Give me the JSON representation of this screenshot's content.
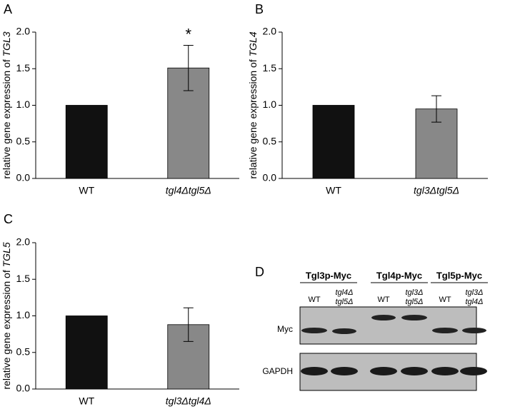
{
  "chart_data": [
    {
      "type": "bar",
      "panel": "A",
      "ylabel": [
        "relative gene expression of ",
        "TGL3"
      ],
      "categories": [
        "WT",
        "tgl4Δtgl5Δ"
      ],
      "values": [
        1.0,
        1.51
      ],
      "errors": [
        null,
        0.31
      ],
      "annotations": [
        null,
        "*"
      ],
      "colors": [
        "#111111",
        "#888888"
      ],
      "ylim": [
        0,
        2
      ],
      "yticks": [
        {
          "value": 0,
          "label": "0.0"
        },
        0.5,
        {
          "value": 1,
          "label": "1.0"
        },
        1.5,
        {
          "value": 2,
          "label": "2.0"
        }
      ]
    },
    {
      "type": "bar",
      "panel": "B",
      "ylabel": [
        "relative gene expression of ",
        "TGL4"
      ],
      "categories": [
        "WT",
        "tgl3Δtgl5Δ"
      ],
      "values": [
        1.0,
        0.95
      ],
      "errors": [
        null,
        0.18
      ],
      "colors": [
        "#111111",
        "#888888"
      ],
      "ylim": [
        0,
        2
      ],
      "yticks": [
        {
          "value": 0,
          "label": "0.0"
        },
        0.5,
        {
          "value": 1,
          "label": "1.0"
        },
        1.5,
        {
          "value": 2,
          "label": "2.0"
        }
      ]
    },
    {
      "type": "bar",
      "panel": "C",
      "ylabel": [
        "relative gene expression of ",
        "TGL5"
      ],
      "categories": [
        "WT",
        "tgl3Δtgl4Δ"
      ],
      "values": [
        1.0,
        0.88
      ],
      "errors": [
        null,
        0.23
      ],
      "colors": [
        "#111111",
        "#888888"
      ],
      "ylim": [
        0,
        2
      ],
      "yticks": [
        {
          "value": 0,
          "label": "0.0"
        },
        0.5,
        {
          "value": 1,
          "label": "1.0"
        },
        1.5,
        {
          "value": 2,
          "label": "2.0"
        }
      ]
    }
  ],
  "blot": {
    "panel": "D",
    "groups": [
      "Tgl3p-Myc",
      "Tgl4p-Myc",
      "Tgl5p-Myc"
    ],
    "lanes": [
      [
        "WT"
      ],
      [
        "tgl4Δ",
        "tgl5Δ"
      ],
      [
        "WT"
      ],
      [
        "tgl3Δ",
        "tgl5Δ"
      ],
      [
        "WT"
      ],
      [
        "tgl3Δ",
        "tgl4Δ"
      ]
    ],
    "rows": [
      "Myc",
      "GAPDH"
    ]
  }
}
